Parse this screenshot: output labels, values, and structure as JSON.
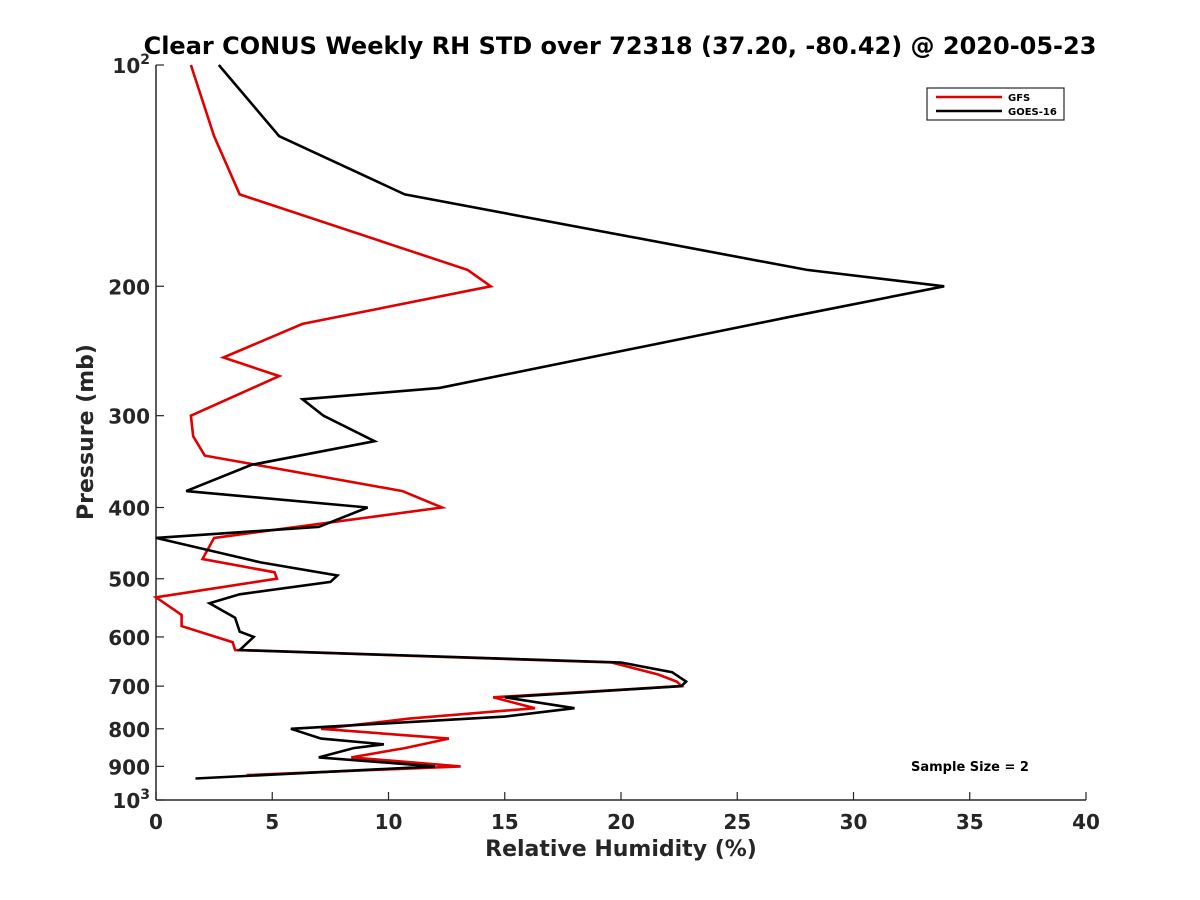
{
  "chart_data": {
    "type": "line",
    "title": "Clear CONUS Weekly RH STD over 72318 (37.20, -80.42) @ 2020-05-23",
    "xlabel": "Relative Humidity (%)",
    "ylabel": "Pressure (mb)",
    "xlim": [
      0,
      40
    ],
    "ylim": [
      100,
      1000
    ],
    "y_scale": "log",
    "y_reversed": true,
    "grid": false,
    "legend_position": "top-right",
    "x_ticks": [
      "0",
      "5",
      "10",
      "15",
      "20",
      "25",
      "30",
      "35",
      "40"
    ],
    "y_ticks": [
      {
        "value": 100,
        "base": "10",
        "exp": "2"
      },
      {
        "value": 200,
        "label": "200"
      },
      {
        "value": 300,
        "label": "300"
      },
      {
        "value": 400,
        "label": "400"
      },
      {
        "value": 500,
        "label": "500"
      },
      {
        "value": 600,
        "label": "600"
      },
      {
        "value": 700,
        "label": "700"
      },
      {
        "value": 800,
        "label": "800"
      },
      {
        "value": 900,
        "label": "900"
      },
      {
        "value": 1000,
        "base": "10",
        "exp": "3"
      }
    ],
    "annotation": "Sample Size = 2",
    "series": [
      {
        "name": "GFS",
        "color": "#e00000",
        "points": [
          [
            1.5,
            100
          ],
          [
            2.5,
            125
          ],
          [
            3.6,
            150
          ],
          [
            13.4,
            190
          ],
          [
            14.4,
            200
          ],
          [
            6.3,
            225
          ],
          [
            2.9,
            250
          ],
          [
            5.3,
            265
          ],
          [
            1.5,
            300
          ],
          [
            1.6,
            320
          ],
          [
            2.1,
            340
          ],
          [
            10.6,
            380
          ],
          [
            12.3,
            400
          ],
          [
            2.5,
            440
          ],
          [
            2.0,
            470
          ],
          [
            5.1,
            490
          ],
          [
            5.2,
            500
          ],
          [
            0.0,
            530
          ],
          [
            1.1,
            560
          ],
          [
            1.1,
            580
          ],
          [
            3.3,
            610
          ],
          [
            3.4,
            625
          ],
          [
            19.6,
            650
          ],
          [
            21.6,
            675
          ],
          [
            22.4,
            690
          ],
          [
            22.6,
            700
          ],
          [
            14.5,
            725
          ],
          [
            16.3,
            750
          ],
          [
            10.9,
            775
          ],
          [
            7.1,
            800
          ],
          [
            12.6,
            825
          ],
          [
            10.7,
            850
          ],
          [
            8.4,
            875
          ],
          [
            13.1,
            900
          ],
          [
            3.9,
            925
          ]
        ]
      },
      {
        "name": "GOES-16",
        "color": "#000000",
        "points": [
          [
            2.7,
            100
          ],
          [
            5.3,
            125
          ],
          [
            10.7,
            150
          ],
          [
            28.0,
            190
          ],
          [
            33.9,
            200
          ],
          [
            27.3,
            220
          ],
          [
            12.2,
            275
          ],
          [
            6.3,
            285
          ],
          [
            7.2,
            300
          ],
          [
            9.4,
            325
          ],
          [
            4.1,
            350
          ],
          [
            1.3,
            380
          ],
          [
            9.1,
            400
          ],
          [
            7.0,
            425
          ],
          [
            0.0,
            440
          ],
          [
            4.5,
            475
          ],
          [
            7.8,
            495
          ],
          [
            7.5,
            505
          ],
          [
            3.6,
            525
          ],
          [
            2.3,
            540
          ],
          [
            3.4,
            565
          ],
          [
            3.6,
            590
          ],
          [
            4.2,
            600
          ],
          [
            3.6,
            625
          ],
          [
            20.0,
            650
          ],
          [
            22.2,
            670
          ],
          [
            22.8,
            690
          ],
          [
            22.6,
            700
          ],
          [
            15.0,
            725
          ],
          [
            18.0,
            750
          ],
          [
            15.0,
            770
          ],
          [
            5.8,
            800
          ],
          [
            7.1,
            825
          ],
          [
            9.8,
            840
          ],
          [
            8.5,
            850
          ],
          [
            7.0,
            875
          ],
          [
            12.0,
            900
          ],
          [
            1.7,
            935
          ]
        ]
      }
    ]
  }
}
